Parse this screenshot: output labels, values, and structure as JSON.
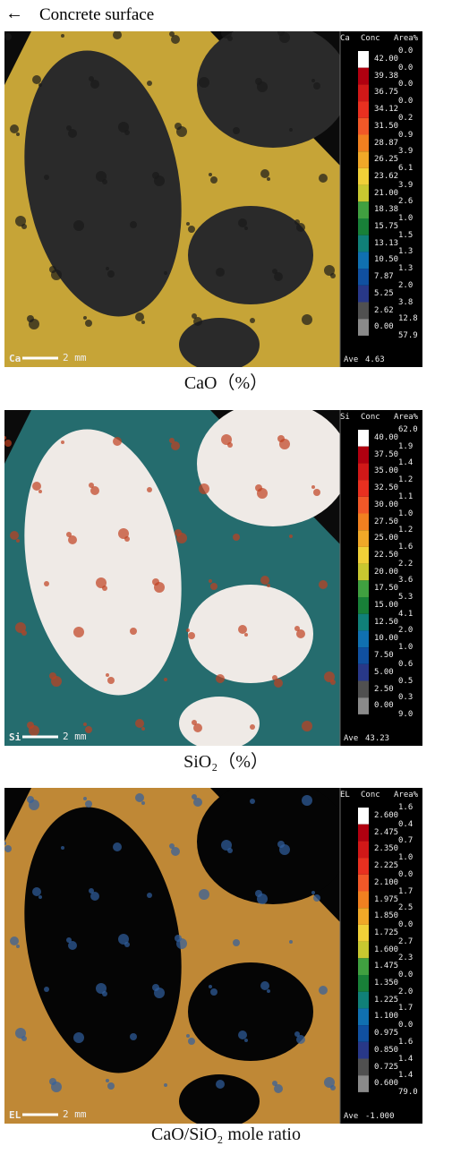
{
  "header": {
    "arrow": "←",
    "text": "Concrete surface"
  },
  "panels": [
    {
      "element": "Ca",
      "legend_header": [
        "Ca",
        "Conc",
        "Area%"
      ],
      "conc": [
        "42.00",
        "39.38",
        "36.75",
        "34.12",
        "31.50",
        "28.87",
        "26.25",
        "23.62",
        "21.00",
        "18.38",
        "15.75",
        "13.13",
        "10.50",
        "7.87",
        "5.25",
        "2.62",
        "0.00"
      ],
      "area": [
        "0.0",
        "0.0",
        "0.0",
        "0.0",
        "0.2",
        "0.9",
        "3.9",
        "6.1",
        "3.9",
        "2.6",
        "1.0",
        "1.5",
        "1.3",
        "1.3",
        "2.0",
        "3.8",
        "12.8",
        "57.9"
      ],
      "ave_label": "Ave",
      "ave": "4.63",
      "scale": "2 mm",
      "caption": "CaO（%）"
    },
    {
      "element": "Si",
      "legend_header": [
        "Si",
        "Conc",
        "Area%"
      ],
      "conc": [
        "40.00",
        "37.50",
        "35.00",
        "32.50",
        "30.00",
        "27.50",
        "25.00",
        "22.50",
        "20.00",
        "17.50",
        "15.00",
        "12.50",
        "10.00",
        "7.50",
        "5.00",
        "2.50",
        "0.00"
      ],
      "area": [
        "62.0",
        "1.9",
        "1.4",
        "1.2",
        "1.1",
        "1.0",
        "1.2",
        "1.6",
        "2.2",
        "3.6",
        "5.3",
        "4.1",
        "2.0",
        "1.0",
        "0.6",
        "0.5",
        "0.3",
        "9.0"
      ],
      "ave_label": "Ave",
      "ave": "43.23",
      "scale": "2 mm",
      "caption": "SiO₂（%）"
    },
    {
      "element": "EL",
      "legend_header": [
        "EL",
        "Conc",
        "Area%"
      ],
      "conc": [
        "2.600",
        "2.475",
        "2.350",
        "2.225",
        "2.100",
        "1.975",
        "1.850",
        "1.725",
        "1.600",
        "1.475",
        "1.350",
        "1.225",
        "1.100",
        "0.975",
        "0.850",
        "0.725",
        "0.600"
      ],
      "area": [
        "1.6",
        "0.4",
        "0.7",
        "1.0",
        "0.0",
        "1.7",
        "2.5",
        "0.0",
        "2.7",
        "2.3",
        "0.0",
        "2.0",
        "1.7",
        "0.0",
        "1.6",
        "1.4",
        "1.4",
        "79.0"
      ],
      "ave_label": "Ave",
      "ave": "-1.000",
      "scale": "2 mm",
      "caption": "CaO/SiO₂ mole ratio"
    }
  ]
}
